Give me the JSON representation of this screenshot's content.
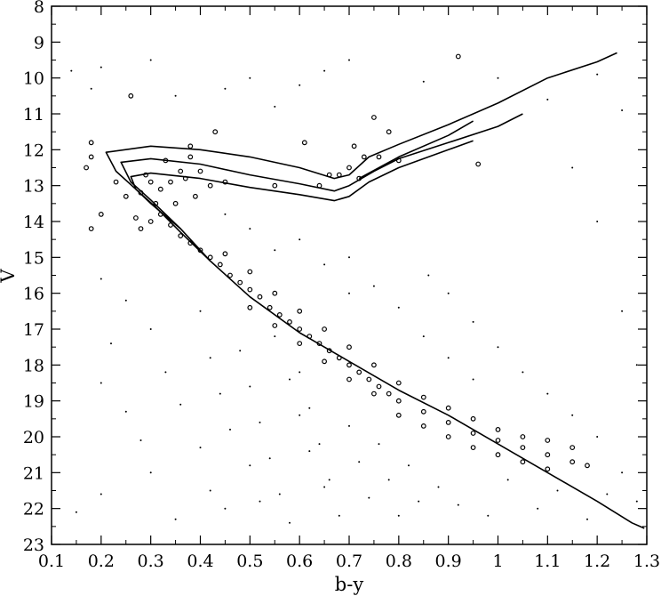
{
  "chart_data": {
    "type": "scatter",
    "title": "",
    "xlabel": "b-y",
    "ylabel": "V",
    "xlim": [
      0.1,
      1.3
    ],
    "ylim": [
      23,
      8
    ],
    "y_inverted": true,
    "grid": false,
    "legend": "none",
    "xticks": [
      "0.1",
      "0.2",
      "0.3",
      "0.4",
      "0.5",
      "0.6",
      "0.7",
      "0.8",
      "0.9",
      "1",
      "1.1",
      "1.2",
      "1.3"
    ],
    "yticks": [
      "8",
      "9",
      "10",
      "11",
      "12",
      "13",
      "14",
      "15",
      "16",
      "17",
      "18",
      "19",
      "20",
      "21",
      "22",
      "23"
    ],
    "series": [
      {
        "marker": "open-circle",
        "points": [
          [
            0.17,
            12.5
          ],
          [
            0.18,
            11.8
          ],
          [
            0.18,
            12.2
          ],
          [
            0.18,
            14.2
          ],
          [
            0.2,
            13.8
          ],
          [
            0.23,
            12.9
          ],
          [
            0.25,
            13.3
          ],
          [
            0.26,
            10.5
          ],
          [
            0.27,
            13.9
          ],
          [
            0.28,
            13.2
          ],
          [
            0.29,
            12.7
          ],
          [
            0.3,
            12.9
          ],
          [
            0.31,
            13.5
          ],
          [
            0.32,
            13.1
          ],
          [
            0.33,
            12.3
          ],
          [
            0.34,
            12.9
          ],
          [
            0.35,
            13.5
          ],
          [
            0.36,
            12.6
          ],
          [
            0.37,
            12.8
          ],
          [
            0.38,
            11.9
          ],
          [
            0.38,
            12.2
          ],
          [
            0.39,
            13.3
          ],
          [
            0.4,
            12.6
          ],
          [
            0.42,
            13.0
          ],
          [
            0.43,
            11.5
          ],
          [
            0.45,
            12.9
          ],
          [
            0.55,
            13.0
          ],
          [
            0.61,
            11.8
          ],
          [
            0.64,
            13.0
          ],
          [
            0.66,
            12.7
          ],
          [
            0.68,
            12.7
          ],
          [
            0.7,
            12.5
          ],
          [
            0.71,
            11.9
          ],
          [
            0.72,
            12.8
          ],
          [
            0.73,
            12.2
          ],
          [
            0.75,
            11.1
          ],
          [
            0.76,
            12.2
          ],
          [
            0.78,
            11.5
          ],
          [
            0.8,
            12.3
          ],
          [
            0.92,
            9.4
          ],
          [
            0.96,
            12.4
          ],
          [
            0.28,
            14.2
          ],
          [
            0.3,
            14.0
          ],
          [
            0.32,
            13.8
          ],
          [
            0.34,
            14.1
          ],
          [
            0.36,
            14.4
          ],
          [
            0.38,
            14.6
          ],
          [
            0.4,
            14.8
          ],
          [
            0.42,
            15.0
          ],
          [
            0.44,
            15.2
          ],
          [
            0.46,
            15.5
          ],
          [
            0.48,
            15.7
          ],
          [
            0.5,
            15.9
          ],
          [
            0.52,
            16.1
          ],
          [
            0.54,
            16.4
          ],
          [
            0.56,
            16.6
          ],
          [
            0.58,
            16.8
          ],
          [
            0.6,
            17.0
          ],
          [
            0.62,
            17.2
          ],
          [
            0.64,
            17.4
          ],
          [
            0.66,
            17.6
          ],
          [
            0.68,
            17.8
          ],
          [
            0.7,
            18.0
          ],
          [
            0.72,
            18.2
          ],
          [
            0.74,
            18.4
          ],
          [
            0.76,
            18.6
          ],
          [
            0.78,
            18.8
          ],
          [
            0.8,
            19.0
          ],
          [
            0.85,
            19.3
          ],
          [
            0.9,
            19.6
          ],
          [
            0.95,
            19.9
          ],
          [
            1.0,
            20.1
          ],
          [
            1.05,
            20.3
          ],
          [
            1.1,
            20.5
          ],
          [
            1.15,
            20.7
          ],
          [
            1.18,
            20.8
          ],
          [
            0.45,
            14.9
          ],
          [
            0.5,
            15.4
          ],
          [
            0.55,
            16.0
          ],
          [
            0.6,
            16.5
          ],
          [
            0.65,
            17.0
          ],
          [
            0.7,
            17.5
          ],
          [
            0.75,
            18.0
          ],
          [
            0.8,
            18.5
          ],
          [
            0.85,
            18.9
          ],
          [
            0.9,
            19.2
          ],
          [
            0.95,
            19.5
          ],
          [
            1.0,
            19.8
          ],
          [
            1.05,
            20.0
          ],
          [
            1.1,
            20.1
          ],
          [
            1.15,
            20.3
          ],
          [
            0.5,
            16.4
          ],
          [
            0.55,
            16.9
          ],
          [
            0.6,
            17.4
          ],
          [
            0.65,
            17.9
          ],
          [
            0.7,
            18.4
          ],
          [
            0.75,
            18.8
          ],
          [
            0.8,
            19.4
          ],
          [
            0.85,
            19.7
          ],
          [
            0.9,
            20.0
          ],
          [
            0.95,
            20.3
          ],
          [
            1.0,
            20.5
          ],
          [
            1.05,
            20.7
          ],
          [
            1.1,
            20.9
          ]
        ]
      },
      {
        "marker": "dot",
        "points": [
          [
            0.14,
            9.8
          ],
          [
            0.18,
            10.3
          ],
          [
            0.2,
            9.7
          ],
          [
            0.3,
            9.5
          ],
          [
            0.35,
            10.5
          ],
          [
            0.45,
            10.3
          ],
          [
            0.5,
            10.0
          ],
          [
            0.55,
            10.8
          ],
          [
            0.6,
            10.2
          ],
          [
            0.65,
            9.8
          ],
          [
            0.7,
            9.5
          ],
          [
            0.85,
            10.1
          ],
          [
            1.0,
            10.0
          ],
          [
            1.1,
            10.6
          ],
          [
            1.2,
            9.9
          ],
          [
            1.25,
            10.9
          ],
          [
            0.2,
            15.6
          ],
          [
            0.25,
            16.2
          ],
          [
            0.22,
            17.4
          ],
          [
            0.2,
            18.5
          ],
          [
            0.25,
            19.3
          ],
          [
            0.28,
            20.1
          ],
          [
            0.3,
            21.0
          ],
          [
            0.15,
            22.1
          ],
          [
            0.2,
            21.6
          ],
          [
            0.35,
            22.3
          ],
          [
            0.3,
            17.0
          ],
          [
            0.33,
            18.2
          ],
          [
            0.36,
            19.1
          ],
          [
            0.4,
            20.3
          ],
          [
            0.42,
            21.5
          ],
          [
            0.45,
            22.0
          ],
          [
            0.48,
            17.6
          ],
          [
            0.5,
            18.6
          ],
          [
            0.52,
            19.6
          ],
          [
            0.54,
            20.6
          ],
          [
            0.56,
            21.6
          ],
          [
            0.58,
            22.4
          ],
          [
            0.6,
            18.2
          ],
          [
            0.62,
            19.2
          ],
          [
            0.64,
            20.2
          ],
          [
            0.66,
            21.2
          ],
          [
            0.68,
            22.2
          ],
          [
            0.7,
            19.7
          ],
          [
            0.72,
            20.7
          ],
          [
            0.74,
            21.7
          ],
          [
            0.76,
            20.2
          ],
          [
            0.78,
            21.2
          ],
          [
            0.8,
            22.2
          ],
          [
            0.82,
            20.8
          ],
          [
            0.84,
            21.8
          ],
          [
            0.86,
            15.5
          ],
          [
            0.9,
            16.0
          ],
          [
            0.95,
            16.8
          ],
          [
            1.0,
            17.5
          ],
          [
            1.05,
            18.2
          ],
          [
            1.1,
            18.8
          ],
          [
            1.15,
            19.4
          ],
          [
            1.2,
            20.0
          ],
          [
            1.25,
            21.0
          ],
          [
            1.28,
            21.8
          ],
          [
            0.88,
            21.4
          ],
          [
            0.92,
            21.9
          ],
          [
            0.98,
            22.2
          ],
          [
            1.02,
            21.2
          ],
          [
            1.08,
            22.0
          ],
          [
            1.12,
            21.5
          ],
          [
            1.18,
            22.3
          ],
          [
            1.22,
            21.6
          ],
          [
            0.4,
            16.5
          ],
          [
            0.42,
            17.8
          ],
          [
            0.44,
            18.8
          ],
          [
            0.46,
            19.8
          ],
          [
            0.5,
            20.8
          ],
          [
            0.52,
            21.8
          ],
          [
            0.55,
            17.2
          ],
          [
            0.58,
            18.4
          ],
          [
            0.6,
            19.4
          ],
          [
            0.62,
            20.4
          ],
          [
            0.65,
            21.4
          ],
          [
            0.7,
            15.0
          ],
          [
            0.75,
            15.8
          ],
          [
            0.8,
            16.4
          ],
          [
            0.85,
            17.2
          ],
          [
            0.9,
            17.8
          ],
          [
            0.95,
            18.4
          ],
          [
            0.6,
            14.5
          ],
          [
            0.65,
            15.2
          ],
          [
            0.7,
            16.0
          ],
          [
            0.5,
            14.2
          ],
          [
            0.55,
            14.8
          ],
          [
            0.45,
            13.8
          ],
          [
            1.15,
            12.5
          ],
          [
            1.2,
            14.0
          ],
          [
            1.25,
            16.5
          ],
          [
            1.28,
            18.0
          ]
        ]
      }
    ],
    "isochrones": [
      {
        "name": "",
        "points": [
          [
            1.295,
            22.55
          ],
          [
            1.27,
            22.4
          ],
          [
            1.2,
            21.8
          ],
          [
            1.1,
            21.0
          ],
          [
            1.0,
            20.2
          ],
          [
            0.9,
            19.4
          ],
          [
            0.8,
            18.7
          ],
          [
            0.7,
            17.9
          ],
          [
            0.6,
            17.1
          ],
          [
            0.5,
            16.1
          ],
          [
            0.42,
            15.1
          ],
          [
            0.36,
            14.3
          ],
          [
            0.31,
            13.6
          ],
          [
            0.27,
            13.1
          ],
          [
            0.23,
            12.6
          ],
          [
            0.21,
            12.07
          ],
          [
            0.3,
            11.9
          ],
          [
            0.4,
            12.0
          ],
          [
            0.5,
            12.2
          ],
          [
            0.6,
            12.5
          ],
          [
            0.67,
            12.8
          ],
          [
            0.7,
            12.7
          ],
          [
            0.74,
            12.2
          ],
          [
            0.8,
            11.85
          ],
          [
            0.9,
            11.3
          ],
          [
            1.0,
            10.7
          ],
          [
            1.1,
            10.0
          ],
          [
            1.2,
            9.55
          ],
          [
            1.24,
            9.3
          ]
        ]
      },
      {
        "name": "",
        "points": [
          [
            0.42,
            15.1
          ],
          [
            0.36,
            14.2
          ],
          [
            0.3,
            13.4
          ],
          [
            0.26,
            12.9
          ],
          [
            0.24,
            12.35
          ],
          [
            0.3,
            12.25
          ],
          [
            0.4,
            12.4
          ],
          [
            0.5,
            12.7
          ],
          [
            0.6,
            12.95
          ],
          [
            0.67,
            13.15
          ],
          [
            0.7,
            13.0
          ],
          [
            0.75,
            12.6
          ],
          [
            0.8,
            12.25
          ],
          [
            0.9,
            11.8
          ],
          [
            1.0,
            11.35
          ],
          [
            1.05,
            11.0
          ]
        ]
      },
      {
        "name": "",
        "points": [
          [
            0.36,
            14.2
          ],
          [
            0.3,
            13.5
          ],
          [
            0.27,
            13.1
          ],
          [
            0.26,
            12.75
          ],
          [
            0.3,
            12.65
          ],
          [
            0.4,
            12.8
          ],
          [
            0.5,
            13.05
          ],
          [
            0.6,
            13.25
          ],
          [
            0.67,
            13.42
          ],
          [
            0.7,
            13.3
          ],
          [
            0.74,
            12.9
          ],
          [
            0.8,
            12.5
          ],
          [
            0.9,
            12.0
          ],
          [
            0.95,
            11.75
          ]
        ]
      },
      {
        "name": "",
        "points": [
          [
            0.72,
            12.8
          ],
          [
            0.8,
            12.2
          ],
          [
            0.9,
            11.6
          ],
          [
            0.95,
            11.2
          ]
        ]
      }
    ]
  }
}
